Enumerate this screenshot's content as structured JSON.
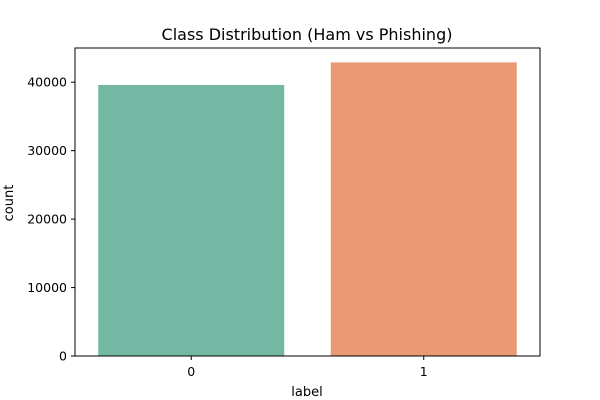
{
  "chart_data": {
    "type": "bar",
    "title": "Class Distribution (Ham vs Phishing)",
    "xlabel": "label",
    "ylabel": "count",
    "categories": [
      "0",
      "1"
    ],
    "values": [
      39600,
      42900
    ],
    "colors": [
      "#74b7a2",
      "#e99a75"
    ],
    "ylim": [
      0,
      45000
    ],
    "yticks": [
      0,
      10000,
      20000,
      30000,
      40000
    ],
    "grid": false,
    "legend": "none"
  }
}
